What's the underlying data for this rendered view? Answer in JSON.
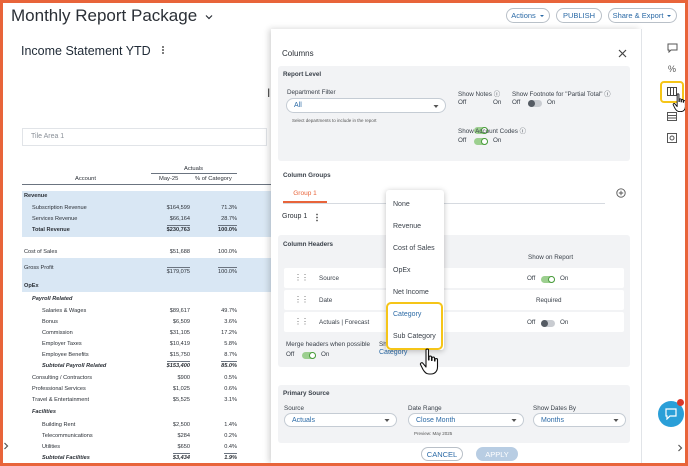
{
  "header": {
    "title": "Monthly Report Package",
    "actions_label": "Actions",
    "publish_label": "PUBLISH",
    "share_label": "Share & Export"
  },
  "report": {
    "title": "Income Statement YTD",
    "tile_area": "Tile Area 1",
    "col_group": "Actuals",
    "col_account": "Account",
    "col_period": "May-25",
    "col_pct": "% of Category",
    "partial_char": "I",
    "rows": [
      {
        "label": "Revenue",
        "v1": "",
        "v2": ""
      },
      {
        "label": "Subscription Revenue",
        "v1": "$164,599",
        "v2": "71.3%"
      },
      {
        "label": "Services Revenue",
        "v1": "$66,164",
        "v2": "28.7%"
      },
      {
        "label": "Total Revenue",
        "v1": "$230,763",
        "v2": "100.0%"
      },
      {
        "label": "Cost of Sales",
        "v1": "$51,688",
        "v2": "100.0%"
      },
      {
        "label": "Gross Profit",
        "v1": "$179,075",
        "v2": "100.0%"
      },
      {
        "label": "OpEx",
        "v1": "",
        "v2": ""
      },
      {
        "label": "Payroll Related",
        "v1": "",
        "v2": ""
      },
      {
        "label": "Salaries & Wages",
        "v1": "$89,617",
        "v2": "49.7%"
      },
      {
        "label": "Bonus",
        "v1": "$6,509",
        "v2": "3.6%"
      },
      {
        "label": "Commission",
        "v1": "$31,105",
        "v2": "17.2%"
      },
      {
        "label": "Employer Taxes",
        "v1": "$10,419",
        "v2": "5.8%"
      },
      {
        "label": "Employee Benefits",
        "v1": "$15,750",
        "v2": "8.7%"
      },
      {
        "label": "Subtotal Payroll Related",
        "v1": "$153,400",
        "v2": "85.0%"
      },
      {
        "label": "Consulting / Contractors",
        "v1": "$900",
        "v2": "0.5%"
      },
      {
        "label": "Professional Services",
        "v1": "$1,025",
        "v2": "0.6%"
      },
      {
        "label": "Travel & Entertainment",
        "v1": "$5,525",
        "v2": "3.1%"
      },
      {
        "label": "Facilities",
        "v1": "",
        "v2": ""
      },
      {
        "label": "Building Rent",
        "v1": "$2,500",
        "v2": "1.4%"
      },
      {
        "label": "Telecommunications",
        "v1": "$284",
        "v2": "0.2%"
      },
      {
        "label": "Utilities",
        "v1": "$650",
        "v2": "0.4%"
      },
      {
        "label": "Subtotal Facilities",
        "v1": "$3,434",
        "v2": "1.9%"
      }
    ]
  },
  "panel": {
    "title": "Columns",
    "report_level": "Report Level",
    "department_filter_label": "Department Filter",
    "department_filter_value": "All",
    "department_filter_help": "Select departments to include in the report",
    "show_notes_label": "Show Notes",
    "show_footnote_label": "Show Footnote for \"Partial Total\"",
    "show_account_codes_label": "Show Account Codes",
    "off": "Off",
    "on": "On",
    "column_groups": "Column Groups",
    "group_tab": "Group 1",
    "group_name": "Group 1",
    "column_headers": "Column Headers",
    "show_on_report": "Show on Report",
    "headers": [
      {
        "label": "Source",
        "state": "toggle-on"
      },
      {
        "label": "Date",
        "state": "Required"
      },
      {
        "label": "Actuals | Forecast",
        "state": "toggle-off"
      }
    ],
    "merge_headers_label": "Merge headers when possible",
    "show_prefix": "Sh",
    "category_chip": "Category",
    "primary_source": "Primary Source",
    "source_label": "Source",
    "source_value": "Actuals",
    "date_range_label": "Date Range",
    "date_range_value": "Close Month",
    "preview_text": "Preview: May 2025",
    "show_dates_by_label": "Show Dates By",
    "show_dates_by_value": "Months",
    "cancel_label": "CANCEL",
    "apply_label": "APPLY"
  },
  "dropdown": {
    "items": [
      "None",
      "Revenue",
      "Cost of Sales",
      "OpEx",
      "Net Income",
      "Category",
      "Sub Category"
    ]
  },
  "colors": {
    "accent": "#2b6aa6",
    "highlight": "#f5c518",
    "frame": "#e8643a",
    "row_highlight": "#d9e7f4",
    "tab_active": "#e8643a"
  },
  "icons": {
    "close": "close-icon",
    "kebab": "kebab-icon",
    "add": "add-circle-icon",
    "drag": "drag-handle-icon",
    "chat": "chat-bubble-icon",
    "comment": "comment-icon",
    "percent": "percent-icon",
    "columns": "columns-icon",
    "settings": "settings-icon",
    "cursor": "hand-cursor-icon"
  }
}
